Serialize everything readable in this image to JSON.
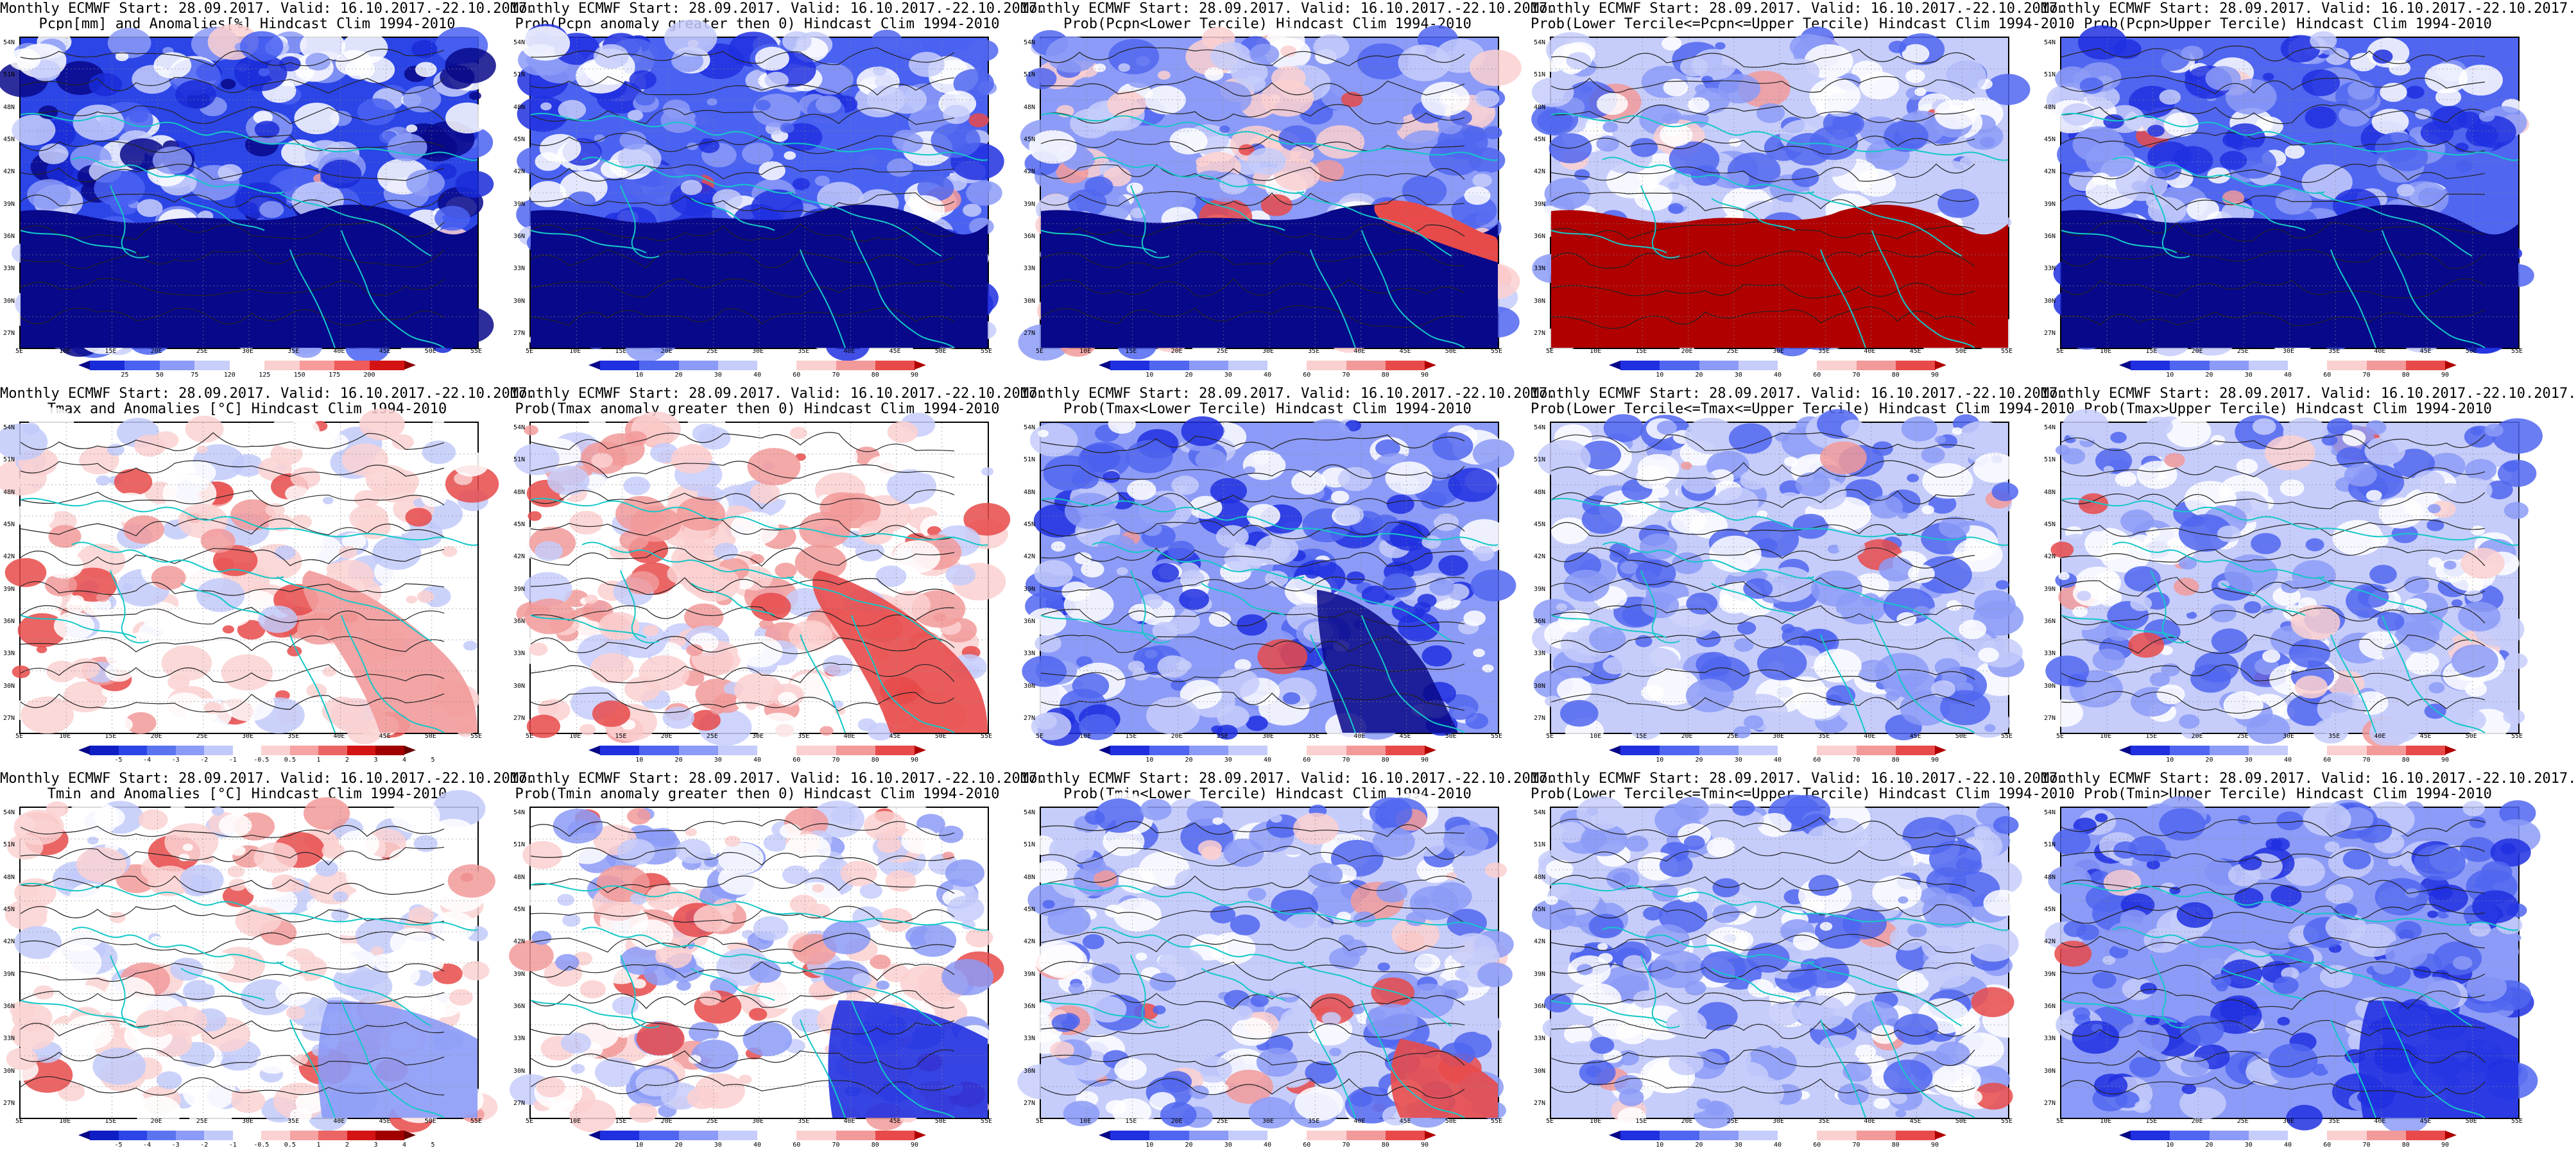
{
  "map": {
    "lat_labels": [
      "54N",
      "51N",
      "48N",
      "45N",
      "42N",
      "39N",
      "36N",
      "33N",
      "30N",
      "27N"
    ],
    "lon_labels": [
      "5E",
      "10E",
      "15E",
      "20E",
      "25E",
      "30E",
      "35E",
      "40E",
      "45E",
      "50E",
      "55E"
    ]
  },
  "colorbars": {
    "pcpn": {
      "labels": [
        "25",
        "50",
        "75",
        "120",
        "125",
        "150",
        "175",
        "200"
      ],
      "colors": [
        "#08088a",
        "#1a2bd8",
        "#4a62f2",
        "#8c9bf7",
        "#c8cffb",
        "#ffffff",
        "#fbd0d0",
        "#f79b9b",
        "#ef5a5a",
        "#d41414",
        "#8b0000"
      ]
    },
    "anom": {
      "labels": [
        "-5",
        "-4",
        "-3",
        "-2",
        "-1",
        "-0.5",
        "0.5",
        "1",
        "2",
        "3",
        "4",
        "5"
      ],
      "colors": [
        "#08088a",
        "#0f1ec4",
        "#2b45e6",
        "#5a74f0",
        "#8c9bf7",
        "#c2caf9",
        "#ffffff",
        "#fad2d2",
        "#f5a3a3",
        "#ec6565",
        "#d41414",
        "#a00000",
        "#6a0000"
      ]
    },
    "prob": {
      "labels": [
        "10",
        "20",
        "30",
        "40",
        "60",
        "70",
        "80",
        "90"
      ],
      "colors": [
        "#08088a",
        "#2030e0",
        "#5066f0",
        "#8c9bf7",
        "#c6cdfa",
        "#ffffff",
        "#fbd0d0",
        "#f29a9a",
        "#e84a4a",
        "#b00000"
      ]
    }
  },
  "panels": [
    {
      "line1": "Monthly ECMWF Start: 28.09.2017. Valid: 16.10.2017.-22.10.2017.",
      "line2": "Pcpn[mm] and Anomalies[%] Hindcast Clim 1994-2010",
      "cbar": "pcpn",
      "style": "pcpn",
      "contour": "#222"
    },
    {
      "line1": "Monthly ECMWF Start: 28.09.2017. Valid: 16.10.2017.-22.10.2017.",
      "line2": "Prob(Pcpn anomaly greater then 0) Hindcast Clim 1994-2010",
      "cbar": "prob",
      "style": "pcpnprob",
      "contour": "#222"
    },
    {
      "line1": "Monthly ECMWF Start: 28.09.2017. Valid: 16.10.2017.-22.10.2017.",
      "line2": "Prob(Pcpn<Lower Tercile) Hindcast Clim 1994-2010",
      "cbar": "prob",
      "style": "pcpnlow",
      "contour": "#222"
    },
    {
      "line1": "Monthly ECMWF Start: 28.09.2017. Valid: 16.10.2017.-22.10.2017.",
      "line2": "Prob(Lower Tercile<=Pcpn<=Upper Tercile) Hindcast Clim 1994-2010",
      "cbar": "prob",
      "style": "pcpnmid",
      "contour": "#222"
    },
    {
      "line1": "Monthly ECMWF Start: 28.09.2017. Valid: 16.10.2017.-22.10.2017.",
      "line2": "Prob(Pcpn>Upper Tercile) Hindcast Clim 1994-2010",
      "cbar": "prob",
      "style": "pcpnup",
      "contour": "#222"
    },
    {
      "line1": "Monthly ECMWF Start: 28.09.2017. Valid: 16.10.2017.-22.10.2017.",
      "line2": "Tmax and Anomalies [°C] Hindcast Clim 1994-2010",
      "cbar": "anom",
      "style": "tmaxanom",
      "contour": "#222"
    },
    {
      "line1": "Monthly ECMWF Start: 28.09.2017. Valid: 16.10.2017.-22.10.2017.",
      "line2": "Prob(Tmax anomaly greater then 0) Hindcast Clim 1994-2010",
      "cbar": "prob",
      "style": "tmaxprob",
      "contour": "#222"
    },
    {
      "line1": "Monthly ECMWF Start: 28.09.2017. Valid: 16.10.2017.-22.10.2017.",
      "line2": "Prob(Tmax<Lower Tercile) Hindcast Clim 1994-2010",
      "cbar": "prob",
      "style": "tmaxlow",
      "contour": "#222"
    },
    {
      "line1": "Monthly ECMWF Start: 28.09.2017. Valid: 16.10.2017.-22.10.2017.",
      "line2": "Prob(Lower Tercile<=Tmax<=Upper Tercile) Hindcast Clim 1994-2010",
      "cbar": "prob",
      "style": "tmaxmid",
      "contour": "#222"
    },
    {
      "line1": "Monthly ECMWF Start: 28.09.2017. Valid: 16.10.2017.-22.10.2017.",
      "line2": "Prob(Tmax>Upper Tercile) Hindcast Clim 1994-2010",
      "cbar": "prob",
      "style": "tmaxup",
      "contour": "#222"
    },
    {
      "line1": "Monthly ECMWF Start: 28.09.2017. Valid: 16.10.2017.-22.10.2017.",
      "line2": "Tmin and Anomalies [°C] Hindcast Clim 1994-2010",
      "cbar": "anom",
      "style": "tminanom",
      "contour": "#222"
    },
    {
      "line1": "Monthly ECMWF Start: 28.09.2017. Valid: 16.10.2017.-22.10.2017.",
      "line2": "Prob(Tmin anomaly greater then 0) Hindcast Clim 1994-2010",
      "cbar": "prob",
      "style": "tminprob",
      "contour": "#222"
    },
    {
      "line1": "Monthly ECMWF Start: 28.09.2017. Valid: 16.10.2017.-22.10.2017.",
      "line2": "Prob(Tmin<Lower Tercile) Hindcast Clim 1994-2010",
      "cbar": "prob",
      "style": "tminlow",
      "contour": "#222"
    },
    {
      "line1": "Monthly ECMWF Start: 28.09.2017. Valid: 16.10.2017.-22.10.2017.",
      "line2": "Prob(Lower Tercile<=Tmin<=Upper Tercile) Hindcast Clim 1994-2010",
      "cbar": "prob",
      "style": "tminmid",
      "contour": "#222"
    },
    {
      "line1": "Monthly ECMWF Start: 28.09.2017. Valid: 16.10.2017.-22.10.2017.",
      "line2": "Prob(Tmin>Upper Tercile) Hindcast Clim 1994-2010",
      "cbar": "prob",
      "style": "tminup",
      "contour": "#222"
    }
  ]
}
